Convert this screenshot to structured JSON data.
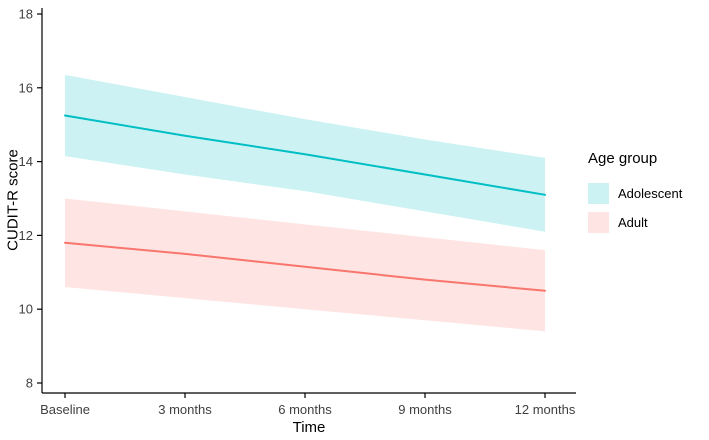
{
  "chart_data": {
    "type": "line",
    "title": "",
    "xlabel": "Time",
    "ylabel": "CUDIT-R score",
    "x_categories": [
      "Baseline",
      "3 months",
      "6 months",
      "9 months",
      "12 months"
    ],
    "ylim": [
      8,
      18
    ],
    "yticks": [
      8,
      10,
      12,
      14,
      16,
      18
    ],
    "grid": false,
    "background": "#ffffff",
    "axis_color": "#000000",
    "tick_label_color": "#404040",
    "legend": {
      "title": "Age group",
      "position": "right"
    },
    "series": [
      {
        "name": "Adolescent",
        "color": "#00BFC4",
        "ribbon": "rgba(0,191,196,0.2)",
        "values": [
          15.25,
          14.7,
          14.2,
          13.65,
          13.1
        ],
        "upper": [
          16.35,
          15.75,
          15.15,
          14.6,
          14.1
        ],
        "lower": [
          14.15,
          13.65,
          13.2,
          12.65,
          12.1
        ]
      },
      {
        "name": "Adult",
        "color": "#F8766D",
        "ribbon": "rgba(248,118,109,0.2)",
        "values": [
          11.8,
          11.5,
          11.15,
          10.8,
          10.5
        ],
        "upper": [
          13.0,
          12.65,
          12.3,
          11.95,
          11.6
        ],
        "lower": [
          10.6,
          10.3,
          10.0,
          9.7,
          9.4
        ]
      }
    ]
  }
}
